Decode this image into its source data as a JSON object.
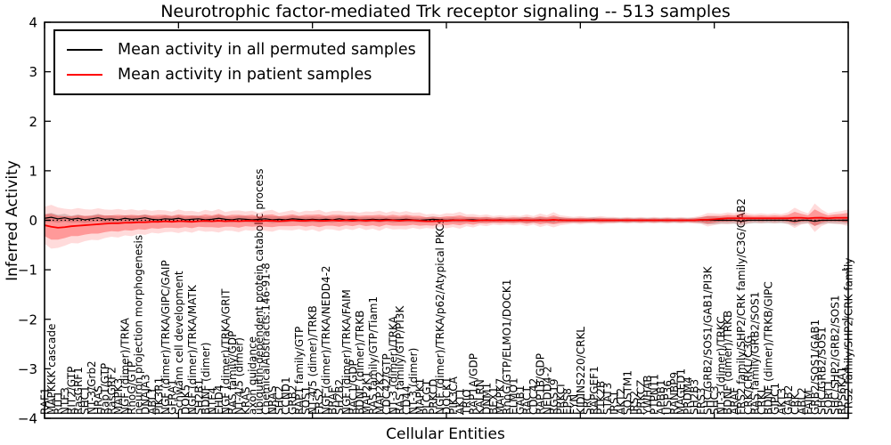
{
  "figure": {
    "title": "Neurotrophic factor-mediated Trk receptor signaling -- 513 samples",
    "xlabel": "Cellular Entities",
    "ylabel": "Inferred Activity"
  },
  "legend": {
    "items": [
      {
        "label": "Mean activity in all permuted samples",
        "color": "#000000"
      },
      {
        "label": "Mean activity in patient samples",
        "color": "#ff0000"
      }
    ]
  },
  "chart_data": {
    "type": "line",
    "title": "Neurotrophic factor-mediated Trk receptor signaling -- 513 samples",
    "xlabel": "Cellular Entities",
    "ylabel": "Inferred Activity",
    "ylim": [
      -4,
      4
    ],
    "yticks": [
      -4,
      -3,
      -2,
      -1,
      0,
      1,
      2,
      3,
      4
    ],
    "ytick_labels": [
      "−4",
      "−3",
      "−2",
      "−1",
      "0",
      "1",
      "2",
      "3",
      "4"
    ],
    "x_major_tick_indices": [
      0,
      20,
      40,
      60,
      80,
      100,
      120
    ],
    "zero_line": 0,
    "colors": {
      "permuted_line": "#000000",
      "patient_line": "#ff0000",
      "patient_band": "#ff0000",
      "permuted_band": "#999999"
    },
    "categories": [
      "RAF1",
      "MAPKKK cascade",
      "RIT1",
      "NTF3",
      "RIT2/GTP",
      "RasGRF1",
      "SHC1",
      "NT-3/Grb2",
      "HRAS",
      "Rap1/GTP",
      "RasGRF2",
      "MAPK3",
      "NGF (dimer)/TRKA",
      "RhoG/GTP",
      "neuron projection morphogenesis",
      "DNAJA3",
      "ABL1",
      "PIK3R1",
      "NGF (dimer)/TRKA/GIPC/GAIP",
      "GFRA1",
      "Schwann cell development",
      "DOK5",
      "NGF (dimer)/TRKA/MATK",
      "SH2B1",
      "BDNF (dimer)",
      "NTF4",
      "EHD4",
      "NGF (dimer)/TRKA/GRIT",
      "RAS family/GDP",
      "NT-4/5 (dimer)",
      "KRAS",
      "axon guidance",
      "ubiquitin-dependent protein catabolic process",
      "ChemicalAbstracts:146-91-8",
      "NRAS",
      "SHC2",
      "CCND1",
      "GRB2",
      "RAP1 family/GTP",
      "SOS1",
      "NT-4/5 (dimer)/TRKB",
      "FRS2",
      "NGF (dimer)/TRKA/NEDD4-2",
      "BRAF",
      "SH2B2",
      "NGF (dimer)/TRKA/FAIM",
      "RAC1/GDP",
      "BDNF (dimer)/TRKB",
      "MAP2K1",
      "RAS family/GTP/Tiam1",
      "MAP2K2",
      "CDC42/GTP",
      "NT-3 (dimer)/TRKA",
      "RAS family/GTP/PI3K",
      "CD44",
      "NT-3 (dimer)",
      "MAPK1",
      "PLCG1",
      "PRKCD",
      "NGF (dimer)/TRKA/p62/Atypical PKCs",
      "DOCK1",
      "PIK3CA",
      "AKT1",
      "TRIO",
      "RAP1A/GDP",
      "KALRN",
      "DNM1",
      "BEX1",
      "MAPK7",
      "RhoG/GTP/ELMO1/DOCK1",
      "ELMO1",
      "GAB1",
      "RAC1",
      "CDC42",
      "RAP1B/GDP",
      "NEDD4-2",
      "RGS19",
      "PRKCI",
      "EPS8",
      "FYN",
      "KIDINS220/CRKL",
      "SRC",
      "RAPGEF1",
      "PTK2B",
      "STAT3",
      "IRS1",
      "AKT2",
      "SQSTM1",
      "IRS2",
      "PRKCZ",
      "YWHAB",
      "PTPN11",
      "APBB1",
      "USP36",
      "RANBP9",
      "MAGED1",
      "PRDM4",
      "SH2B3",
      "FRS3",
      "SHC/GRB2/SOS1/GAB1/PI3K",
      "SHC3",
      "NT-3 (dimer)/TRKC",
      "BDNF (dimer)/TRKB",
      "ARAF",
      "FRS2 family/SHP2/CRK family/C3G/GAB2",
      "CRK/CRKL/C3G",
      "RAS family/GRB2/SOS1",
      "CRKL",
      "BDNF (dimer)/TRKB/GIPC",
      "GIPC1",
      "AKT3",
      "GAB2",
      "CRK",
      "ABL2",
      "FAIM",
      "GRB2/SOS1/GAB1",
      "SHC/GRB2/SOS1",
      "SORT1",
      "SHC/SHP2/GRB2/SOS1",
      "RPS6KA1",
      "FRS2 family/SHP2/CRK family"
    ],
    "series": [
      {
        "name": "Mean activity in all permuted samples",
        "color": "#000000",
        "values": [
          0.04,
          0.06,
          0.03,
          0.05,
          0.02,
          0.04,
          0.01,
          0.03,
          0.05,
          0.02,
          0.03,
          0.01,
          0.04,
          0.02,
          0.03,
          0.05,
          0.02,
          0.01,
          0.03,
          0.02,
          0.04,
          0.01,
          0.02,
          0.03,
          0.01,
          0.02,
          0.04,
          0.02,
          0.01,
          0.03,
          0.02,
          0.01,
          0.02,
          0.03,
          0.01,
          0.02,
          0.01,
          0.03,
          0.02,
          0.01,
          0.02,
          0.01,
          0.02,
          0.01,
          0.03,
          0.01,
          0.02,
          0.01,
          0.01,
          0.02,
          0.01,
          0.02,
          0.01,
          0.01,
          0.02,
          0.01,
          0.0,
          0.01,
          0.02,
          0.01,
          0.0,
          0.01,
          0.0,
          0.01,
          0.01,
          0.0,
          0.01,
          0.0,
          0.01,
          0.0,
          0.0,
          0.01,
          0.0,
          0.0,
          0.01,
          0.0,
          0.0,
          0.01,
          0.0,
          0.0,
          0.0,
          0.0,
          0.01,
          0.0,
          0.0,
          0.0,
          0.0,
          0.0,
          0.0,
          0.0,
          0.0,
          0.0,
          0.0,
          0.0,
          0.0,
          0.0,
          0.0,
          0.0,
          0.0,
          0.0,
          0.0,
          0.0,
          0.0,
          0.0,
          -0.02,
          0.0,
          0.0,
          0.0,
          0.0,
          0.0,
          0.0,
          0.0,
          -0.02,
          0.0,
          0.0,
          -0.02,
          0.0,
          0.0,
          0.0,
          0.0,
          0.0
        ]
      },
      {
        "name": "Mean activity in patient samples",
        "color": "#ff0000",
        "values": [
          -0.1,
          -0.13,
          -0.15,
          -0.14,
          -0.12,
          -0.11,
          -0.1,
          -0.09,
          -0.08,
          -0.07,
          -0.06,
          -0.06,
          -0.05,
          -0.05,
          -0.04,
          -0.04,
          -0.03,
          -0.03,
          -0.02,
          -0.03,
          -0.02,
          -0.02,
          -0.03,
          -0.02,
          -0.01,
          -0.02,
          -0.01,
          -0.02,
          -0.01,
          -0.02,
          -0.01,
          -0.01,
          -0.02,
          -0.01,
          -0.01,
          -0.02,
          -0.01,
          0.0,
          -0.01,
          -0.01,
          0.0,
          -0.01,
          -0.01,
          0.0,
          -0.01,
          0.0,
          -0.01,
          0.0,
          -0.01,
          0.0,
          -0.01,
          0.0,
          0.0,
          -0.01,
          0.0,
          0.0,
          -0.01,
          -0.02,
          -0.02,
          -0.01,
          -0.01,
          0.0,
          0.0,
          0.0,
          -0.01,
          0.0,
          0.0,
          0.0,
          0.0,
          0.0,
          0.0,
          0.0,
          0.0,
          0.0,
          0.0,
          0.0,
          0.01,
          0.0,
          0.0,
          0.0,
          0.0,
          0.0,
          0.0,
          0.0,
          0.0,
          0.0,
          0.0,
          0.0,
          0.0,
          0.0,
          0.0,
          0.0,
          0.0,
          0.0,
          0.0,
          0.0,
          0.0,
          0.0,
          0.01,
          0.01,
          0.02,
          0.03,
          0.04,
          0.04,
          0.04,
          0.04,
          0.04,
          0.04,
          0.04,
          0.04,
          0.04,
          0.04,
          0.05,
          0.05,
          0.04,
          0.05,
          0.05,
          0.04,
          0.05,
          0.05,
          0.05
        ]
      }
    ],
    "patient_band_halfwidth": [
      0.22,
      0.26,
      0.24,
      0.22,
      0.2,
      0.21,
      0.19,
      0.18,
      0.19,
      0.17,
      0.16,
      0.17,
      0.15,
      0.16,
      0.14,
      0.15,
      0.13,
      0.14,
      0.13,
      0.12,
      0.14,
      0.12,
      0.13,
      0.11,
      0.13,
      0.12,
      0.14,
      0.11,
      0.12,
      0.13,
      0.11,
      0.12,
      0.1,
      0.12,
      0.13,
      0.1,
      0.11,
      0.12,
      0.1,
      0.12,
      0.11,
      0.13,
      0.1,
      0.11,
      0.12,
      0.1,
      0.11,
      0.09,
      0.11,
      0.1,
      0.12,
      0.09,
      0.11,
      0.1,
      0.11,
      0.09,
      0.1,
      0.08,
      0.09,
      0.07,
      0.09,
      0.08,
      0.1,
      0.07,
      0.08,
      0.06,
      0.07,
      0.05,
      0.06,
      0.05,
      0.06,
      0.05,
      0.07,
      0.05,
      0.08,
      0.06,
      0.09,
      0.06,
      0.05,
      0.04,
      0.05,
      0.04,
      0.04,
      0.05,
      0.04,
      0.04,
      0.03,
      0.04,
      0.03,
      0.04,
      0.03,
      0.04,
      0.03,
      0.04,
      0.03,
      0.04,
      0.03,
      0.04,
      0.05,
      0.08,
      0.07,
      0.06,
      0.07,
      0.06,
      0.09,
      0.06,
      0.05,
      0.06,
      0.05,
      0.06,
      0.05,
      0.07,
      0.12,
      0.08,
      0.06,
      0.17,
      0.1,
      0.06,
      0.07,
      0.08,
      0.1
    ],
    "permuted_band_halfwidth": [
      0.08,
      0.09,
      0.08,
      0.08,
      0.07,
      0.08,
      0.07,
      0.07,
      0.08,
      0.07,
      0.07,
      0.07,
      0.06,
      0.07,
      0.06,
      0.07,
      0.06,
      0.06,
      0.07,
      0.06,
      0.06,
      0.06,
      0.07,
      0.06,
      0.06,
      0.06,
      0.07,
      0.06,
      0.06,
      0.06,
      0.06,
      0.06,
      0.06,
      0.06,
      0.07,
      0.06,
      0.06,
      0.06,
      0.06,
      0.06,
      0.06,
      0.06,
      0.06,
      0.06,
      0.06,
      0.06,
      0.06,
      0.05,
      0.06,
      0.05,
      0.06,
      0.05,
      0.06,
      0.05,
      0.06,
      0.05,
      0.05,
      0.05,
      0.06,
      0.05,
      0.05,
      0.05,
      0.05,
      0.05,
      0.05,
      0.05,
      0.05,
      0.05,
      0.05,
      0.05,
      0.05,
      0.05,
      0.06,
      0.05,
      0.05,
      0.05,
      0.06,
      0.05,
      0.05,
      0.05,
      0.05,
      0.05,
      0.05,
      0.05,
      0.05,
      0.05,
      0.05,
      0.05,
      0.05,
      0.05,
      0.05,
      0.05,
      0.05,
      0.05,
      0.05,
      0.05,
      0.05,
      0.05,
      0.06,
      0.08,
      0.08,
      0.07,
      0.07,
      0.07,
      0.09,
      0.07,
      0.06,
      0.06,
      0.06,
      0.06,
      0.06,
      0.07,
      0.09,
      0.07,
      0.06,
      0.09,
      0.08,
      0.06,
      0.07,
      0.07,
      0.08
    ]
  }
}
